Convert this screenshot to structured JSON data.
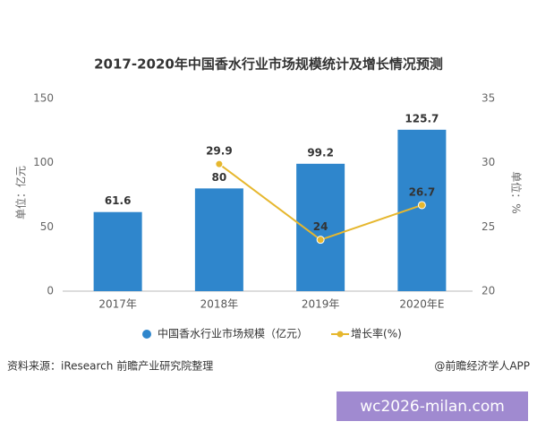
{
  "chart_data": {
    "type": "bar",
    "title": "2017-2020年中国香水行业市场规模统计及增长情况预测",
    "categories": [
      "2017年",
      "2018年",
      "2019年",
      "2020年E"
    ],
    "series": [
      {
        "name": "中国香水行业市场规模（亿元）",
        "type": "bar",
        "color": "#2f86cc",
        "values": [
          61.6,
          80,
          99.2,
          125.7
        ]
      },
      {
        "name": "增长率(%)",
        "type": "line",
        "axis": "y2",
        "color": "#e6b72e",
        "values": [
          null,
          29.9,
          24,
          26.7
        ]
      }
    ],
    "ylabel": "单位：亿元",
    "y2label": "单位：%",
    "ylim": [
      0,
      150
    ],
    "yticks": [
      0,
      50,
      100,
      150
    ],
    "y2lim": [
      20,
      35
    ],
    "y2ticks": [
      20,
      25,
      30,
      35
    ],
    "grid": false,
    "legend": "bottom"
  },
  "footer": {
    "source": "资料来源：iResearch 前瞻产业研究院整理",
    "credit": "@前瞻经济学人APP"
  },
  "watermark": "wc2026-milan.com"
}
